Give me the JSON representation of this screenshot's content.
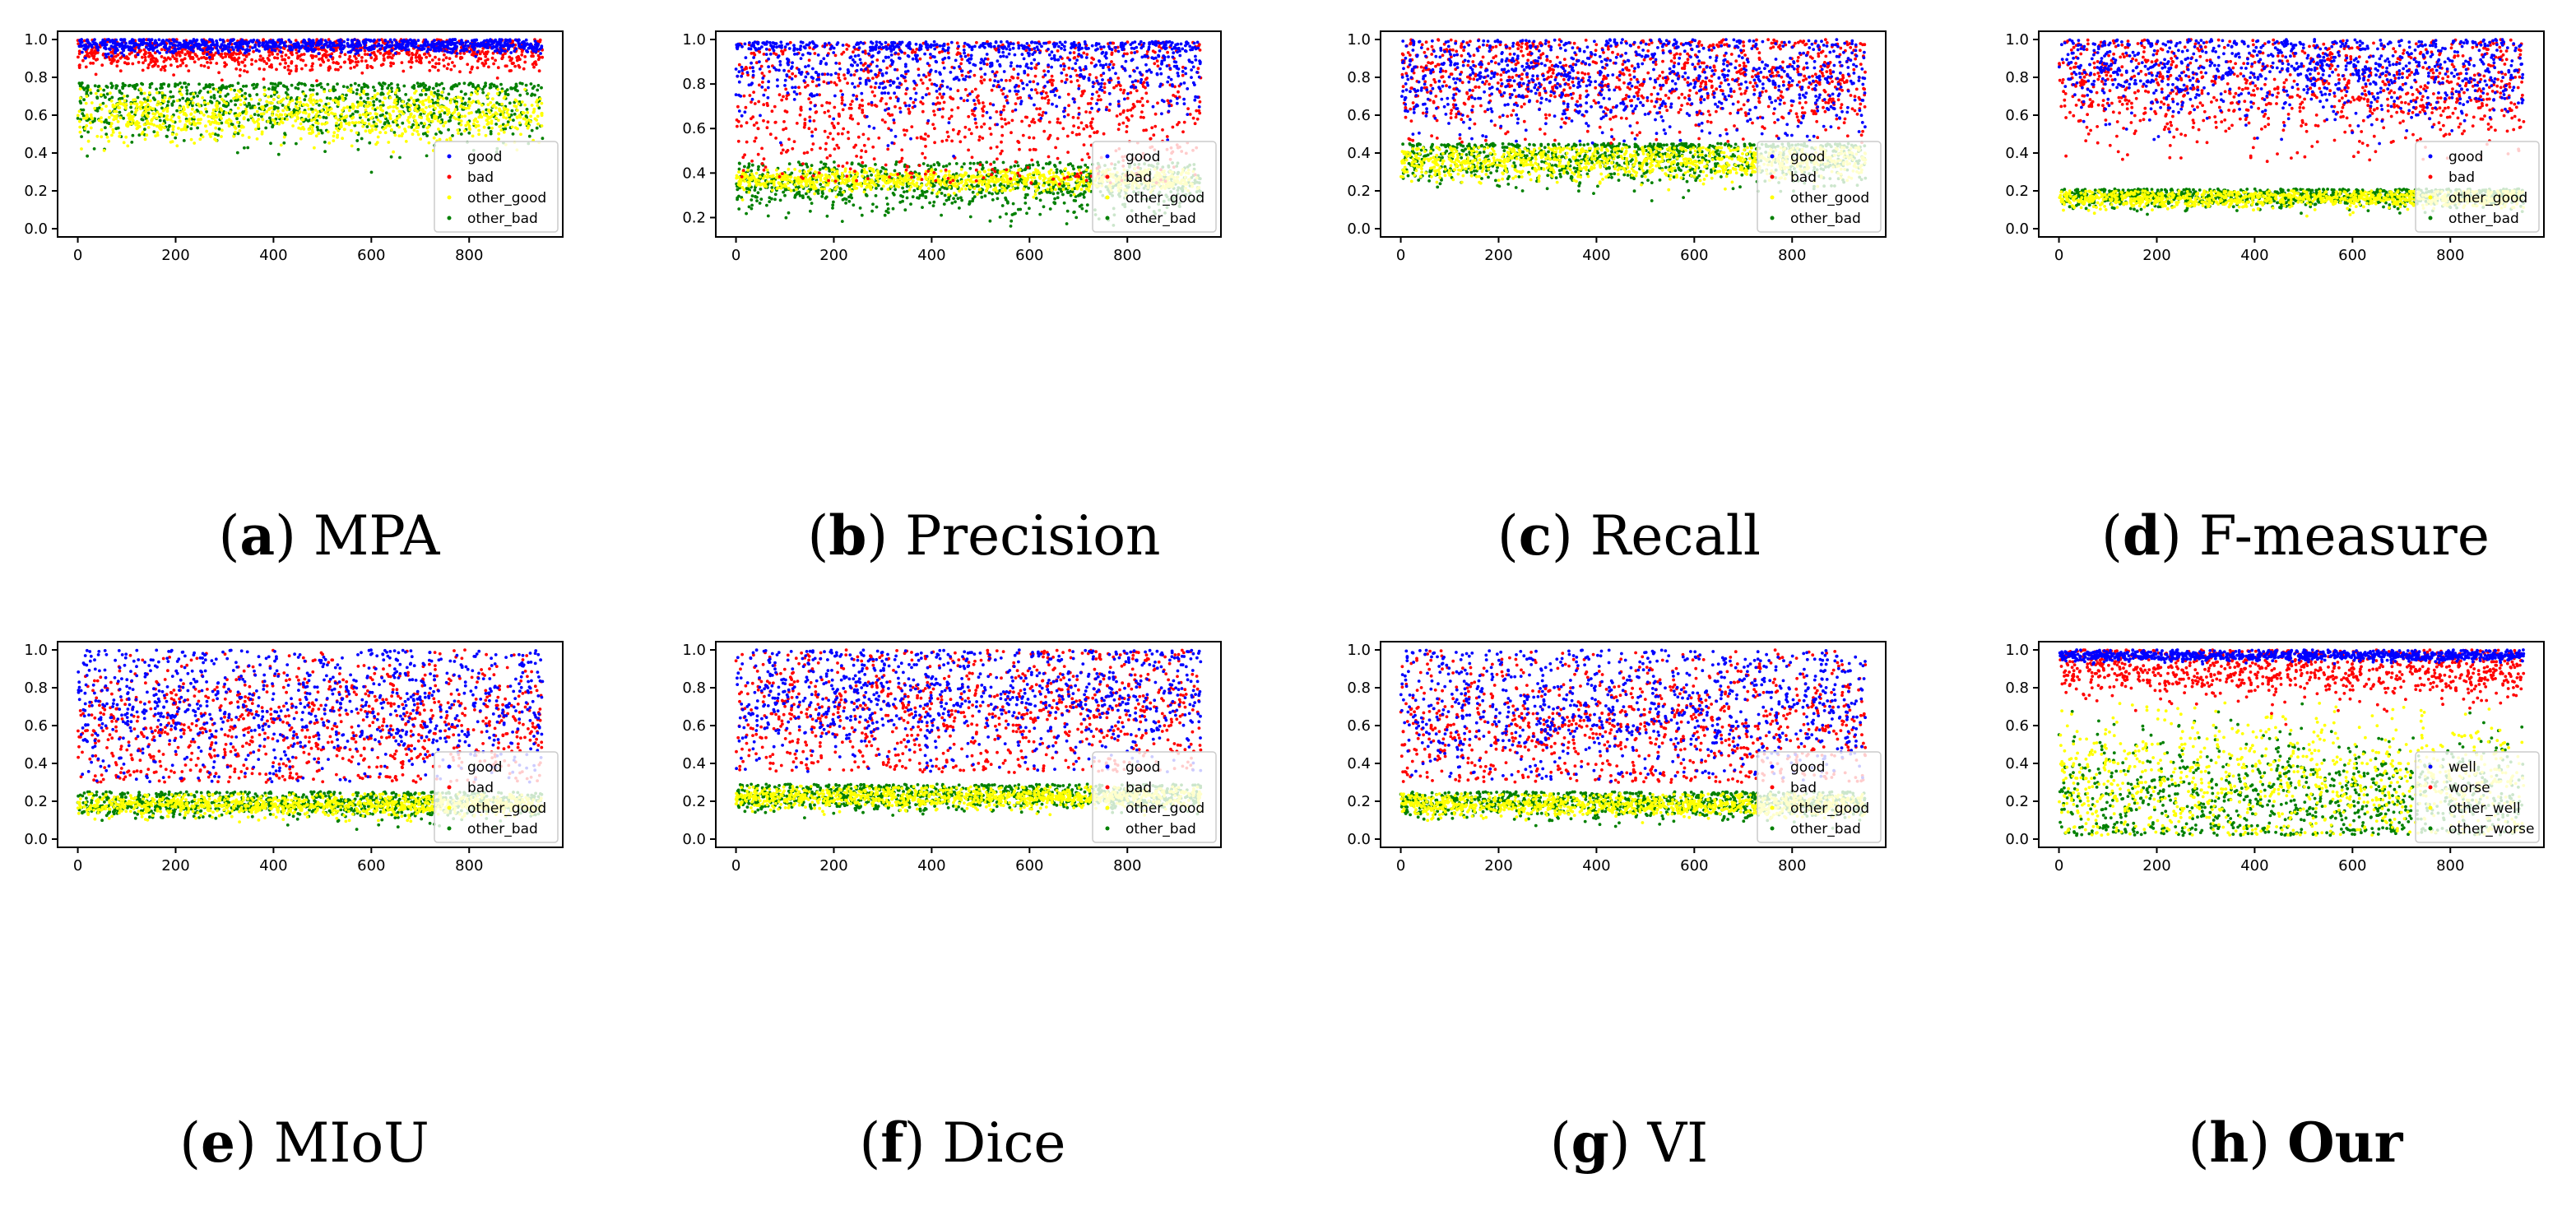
{
  "figure": {
    "panels": [
      {
        "letter": "a",
        "name": "MPA",
        "name_bold": false,
        "legend": [
          "good",
          "bad",
          "other_good",
          "other_bad"
        ]
      },
      {
        "letter": "b",
        "name": "Precision",
        "name_bold": false,
        "legend": [
          "good",
          "bad",
          "other_good",
          "other_bad"
        ]
      },
      {
        "letter": "c",
        "name": "Recall",
        "name_bold": false,
        "legend": [
          "good",
          "bad",
          "other_good",
          "other_bad"
        ]
      },
      {
        "letter": "d",
        "name": "F-measure",
        "name_bold": false,
        "legend": [
          "good",
          "bad",
          "other_good",
          "other_bad"
        ]
      },
      {
        "letter": "e",
        "name": "MIoU",
        "name_bold": false,
        "legend": [
          "good",
          "bad",
          "other_good",
          "other_bad"
        ]
      },
      {
        "letter": "f",
        "name": "Dice",
        "name_bold": false,
        "legend": [
          "good",
          "bad",
          "other_good",
          "other_bad"
        ]
      },
      {
        "letter": "g",
        "name": "VI",
        "name_bold": false,
        "legend": [
          "good",
          "bad",
          "other_good",
          "other_bad"
        ]
      },
      {
        "letter": "h",
        "name": "Our",
        "name_bold": true,
        "legend": [
          "well",
          "worse",
          "other_well",
          "other_worse"
        ]
      }
    ]
  },
  "colors": {
    "series": [
      "#0000ff",
      "#ff0000",
      "#ffff00",
      "#008000"
    ],
    "axis": "#000000"
  },
  "chart_data": [
    {
      "type": "scatter",
      "title": "MPA",
      "xlim": [
        0,
        950
      ],
      "xticks": [
        0,
        200,
        400,
        600,
        800
      ],
      "ylim": [
        0.0,
        1.0
      ],
      "yticks": [
        0.0,
        0.2,
        0.4,
        0.6,
        0.8,
        1.0
      ],
      "legend_position": "lower-right",
      "series": [
        {
          "name": "good",
          "n": 950,
          "center": 0.97,
          "spread": 0.02,
          "min": 0.9,
          "max": 1.0
        },
        {
          "name": "bad",
          "n": 950,
          "center": 0.93,
          "spread": 0.05,
          "min": 0.75,
          "max": 1.0
        },
        {
          "name": "other_good",
          "n": 950,
          "center": 0.6,
          "spread": 0.07,
          "min": 0.33,
          "max": 0.74
        },
        {
          "name": "other_bad",
          "n": 950,
          "center": 0.66,
          "spread": 0.1,
          "min": 0.1,
          "max": 0.77
        }
      ]
    },
    {
      "type": "scatter",
      "title": "Precision",
      "xlim": [
        0,
        950
      ],
      "xticks": [
        0,
        200,
        400,
        600,
        800
      ],
      "ylim": [
        0.15,
        1.0
      ],
      "yticks": [
        0.2,
        0.4,
        0.6,
        0.8,
        1.0
      ],
      "legend_position": "lower-right",
      "series": [
        {
          "name": "good",
          "n": 950,
          "center": 0.9,
          "spread": 0.12,
          "min": 0.4,
          "max": 0.99
        },
        {
          "name": "bad",
          "n": 950,
          "center": 0.72,
          "spread": 0.2,
          "min": 0.35,
          "max": 0.99
        },
        {
          "name": "other_good",
          "n": 950,
          "center": 0.37,
          "spread": 0.025,
          "min": 0.2,
          "max": 0.42
        },
        {
          "name": "other_bad",
          "n": 950,
          "center": 0.35,
          "spread": 0.06,
          "min": 0.15,
          "max": 0.45
        }
      ]
    },
    {
      "type": "scatter",
      "title": "Recall",
      "xlim": [
        0,
        950
      ],
      "xticks": [
        0,
        200,
        400,
        600,
        800
      ],
      "ylim": [
        0.0,
        1.0
      ],
      "yticks": [
        0.0,
        0.2,
        0.4,
        0.6,
        0.8,
        1.0
      ],
      "legend_position": "lower-right",
      "series": [
        {
          "name": "good",
          "n": 950,
          "center": 0.8,
          "spread": 0.15,
          "min": 0.45,
          "max": 1.0
        },
        {
          "name": "bad",
          "n": 950,
          "center": 0.8,
          "spread": 0.15,
          "min": 0.45,
          "max": 1.0
        },
        {
          "name": "other_good",
          "n": 950,
          "center": 0.36,
          "spread": 0.05,
          "min": 0.05,
          "max": 0.43
        },
        {
          "name": "other_bad",
          "n": 950,
          "center": 0.38,
          "spread": 0.07,
          "min": 0.05,
          "max": 0.45
        }
      ]
    },
    {
      "type": "scatter",
      "title": "F-measure",
      "xlim": [
        0,
        950
      ],
      "xticks": [
        0,
        200,
        400,
        600,
        800
      ],
      "ylim": [
        0.0,
        1.0
      ],
      "yticks": [
        0.0,
        0.2,
        0.4,
        0.6,
        0.8,
        1.0
      ],
      "legend_position": "lower-right",
      "series": [
        {
          "name": "good",
          "n": 950,
          "center": 0.85,
          "spread": 0.13,
          "min": 0.45,
          "max": 1.0
        },
        {
          "name": "bad",
          "n": 950,
          "center": 0.75,
          "spread": 0.16,
          "min": 0.35,
          "max": 1.0
        },
        {
          "name": "other_good",
          "n": 950,
          "center": 0.16,
          "spread": 0.025,
          "min": 0.05,
          "max": 0.2
        },
        {
          "name": "other_bad",
          "n": 950,
          "center": 0.17,
          "spread": 0.03,
          "min": 0.05,
          "max": 0.21
        }
      ]
    },
    {
      "type": "scatter",
      "title": "MIoU",
      "xlim": [
        0,
        950
      ],
      "xticks": [
        0,
        200,
        400,
        600,
        800
      ],
      "ylim": [
        0.0,
        1.0
      ],
      "yticks": [
        0.0,
        0.2,
        0.4,
        0.6,
        0.8,
        1.0
      ],
      "legend_position": "lower-right",
      "series": [
        {
          "name": "good",
          "n": 950,
          "center": 0.7,
          "spread": 0.2,
          "min": 0.3,
          "max": 1.0
        },
        {
          "name": "bad",
          "n": 950,
          "center": 0.6,
          "spread": 0.2,
          "min": 0.3,
          "max": 1.0
        },
        {
          "name": "other_good",
          "n": 950,
          "center": 0.18,
          "spread": 0.03,
          "min": 0.0,
          "max": 0.24
        },
        {
          "name": "other_bad",
          "n": 950,
          "center": 0.19,
          "spread": 0.04,
          "min": 0.0,
          "max": 0.25
        }
      ]
    },
    {
      "type": "scatter",
      "title": "Dice",
      "xlim": [
        0,
        950
      ],
      "xticks": [
        0,
        200,
        400,
        600,
        800
      ],
      "ylim": [
        0.0,
        1.0
      ],
      "yticks": [
        0.0,
        0.2,
        0.4,
        0.6,
        0.8,
        1.0
      ],
      "legend_position": "lower-right",
      "series": [
        {
          "name": "good",
          "n": 950,
          "center": 0.75,
          "spread": 0.18,
          "min": 0.35,
          "max": 1.0
        },
        {
          "name": "bad",
          "n": 950,
          "center": 0.68,
          "spread": 0.2,
          "min": 0.35,
          "max": 1.0
        },
        {
          "name": "other_good",
          "n": 950,
          "center": 0.22,
          "spread": 0.03,
          "min": 0.02,
          "max": 0.28
        },
        {
          "name": "other_bad",
          "n": 950,
          "center": 0.23,
          "spread": 0.04,
          "min": 0.02,
          "max": 0.29
        }
      ]
    },
    {
      "type": "scatter",
      "title": "VI",
      "xlim": [
        0,
        950
      ],
      "xticks": [
        0,
        200,
        400,
        600,
        800
      ],
      "ylim": [
        0.0,
        1.0
      ],
      "yticks": [
        0.0,
        0.2,
        0.4,
        0.6,
        0.8,
        1.0
      ],
      "legend_position": "lower-right",
      "series": [
        {
          "name": "good",
          "n": 950,
          "center": 0.7,
          "spread": 0.2,
          "min": 0.3,
          "max": 1.0
        },
        {
          "name": "bad",
          "n": 950,
          "center": 0.6,
          "spread": 0.2,
          "min": 0.3,
          "max": 1.0
        },
        {
          "name": "other_good",
          "n": 950,
          "center": 0.18,
          "spread": 0.03,
          "min": 0.0,
          "max": 0.24
        },
        {
          "name": "other_bad",
          "n": 950,
          "center": 0.19,
          "spread": 0.04,
          "min": 0.0,
          "max": 0.25
        }
      ]
    },
    {
      "type": "scatter",
      "title": "Our",
      "xlim": [
        0,
        950
      ],
      "xticks": [
        0,
        200,
        400,
        600,
        800
      ],
      "ylim": [
        0.0,
        1.0
      ],
      "yticks": [
        0.0,
        0.2,
        0.4,
        0.6,
        0.8,
        1.0
      ],
      "legend_position": "lower-right",
      "series": [
        {
          "name": "well",
          "n": 950,
          "center": 0.97,
          "spread": 0.015,
          "min": 0.9,
          "max": 1.0
        },
        {
          "name": "worse",
          "n": 950,
          "center": 0.9,
          "spread": 0.08,
          "min": 0.4,
          "max": 1.0
        },
        {
          "name": "other_well",
          "n": 950,
          "center": 0.3,
          "spread": 0.17,
          "min": 0.02,
          "max": 0.72
        },
        {
          "name": "other_worse",
          "n": 950,
          "center": 0.22,
          "spread": 0.15,
          "min": 0.02,
          "max": 0.72
        }
      ]
    }
  ]
}
